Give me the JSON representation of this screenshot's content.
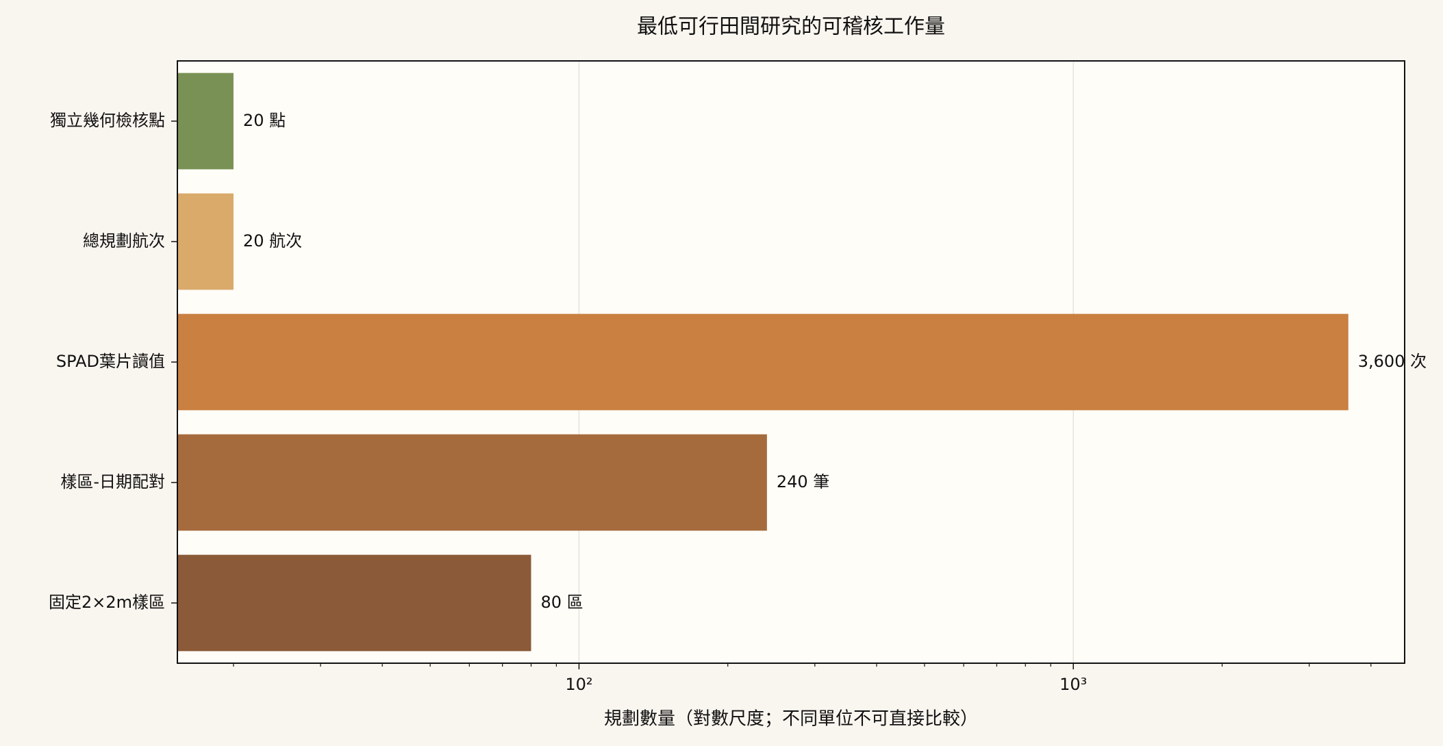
{
  "chart_data": {
    "type": "barh",
    "title": "最低可行田間研究的可稽核工作量",
    "xlabel": "規劃數量（對數尺度；不同單位不可直接比較）",
    "categories": [
      "獨立幾何檢核點",
      "總規劃航次",
      "SPAD葉片讀值",
      "樣區-日期配對",
      "固定2×2m樣區"
    ],
    "values": [
      20,
      20,
      3600,
      240,
      80
    ],
    "value_labels": [
      "20 點",
      "20 航次",
      "3,600 次",
      "240 筆",
      "80 區"
    ],
    "colors": [
      "#7a9155",
      "#d9aa6a",
      "#c98040",
      "#a66b3d",
      "#8b5a38"
    ],
    "xscale": "log",
    "xlim": [
      15.4,
      4680
    ],
    "xticks": [
      {
        "value": 100,
        "label": "10²"
      },
      {
        "value": 1000,
        "label": "10³"
      }
    ],
    "xminor_ticks": [
      20,
      30,
      40,
      50,
      60,
      70,
      80,
      90,
      200,
      300,
      400,
      500,
      600,
      700,
      800,
      900,
      2000,
      3000,
      4000
    ],
    "grid": true
  }
}
